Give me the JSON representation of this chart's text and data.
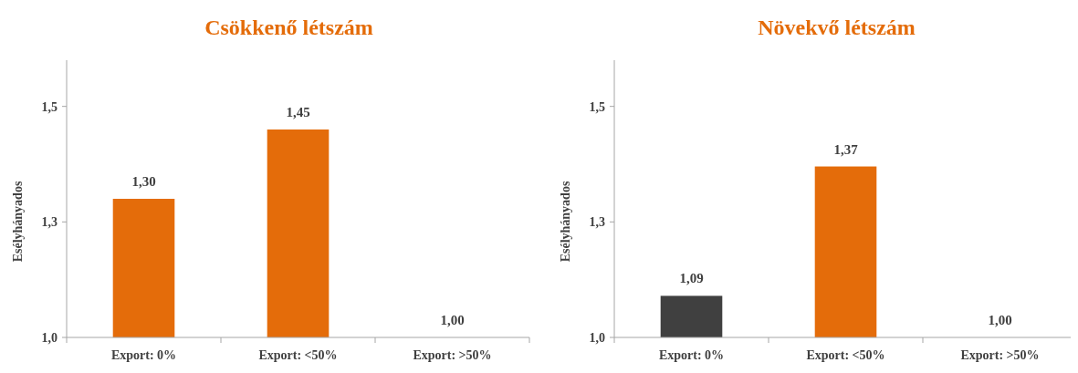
{
  "chart_data": [
    {
      "type": "bar",
      "title": "Csökkenő létszám",
      "ylabel": "Esélyhányados",
      "categories": [
        "Export: 0%",
        "Export: <50%",
        "Export: >50%"
      ],
      "values": [
        1.3,
        1.45,
        1.0
      ],
      "colors": [
        "#e46c0a",
        "#e46c0a",
        "#e46c0a"
      ],
      "value_labels": [
        "1,30",
        "1,45",
        "1,00"
      ],
      "ylim": [
        1,
        1.6
      ],
      "yticks": [
        {
          "value": 1,
          "label": "1,0"
        },
        {
          "value": 1.25,
          "label": "1,3"
        },
        {
          "value": 1.5,
          "label": "1,5"
        }
      ]
    },
    {
      "type": "bar",
      "title": "Növekvő létszám",
      "ylabel": "Esélyhányados",
      "categories": [
        "Export: 0%",
        "Export: <50%",
        "Export: >50%"
      ],
      "values": [
        1.09,
        1.37,
        1.0
      ],
      "colors": [
        "#404040",
        "#e46c0a",
        "#e46c0a"
      ],
      "value_labels": [
        "1,09",
        "1,37",
        "1,00"
      ],
      "ylim": [
        1,
        1.6
      ],
      "yticks": [
        {
          "value": 1,
          "label": "1,0"
        },
        {
          "value": 1.25,
          "label": "1,3"
        },
        {
          "value": 1.5,
          "label": "1,5"
        }
      ]
    }
  ]
}
